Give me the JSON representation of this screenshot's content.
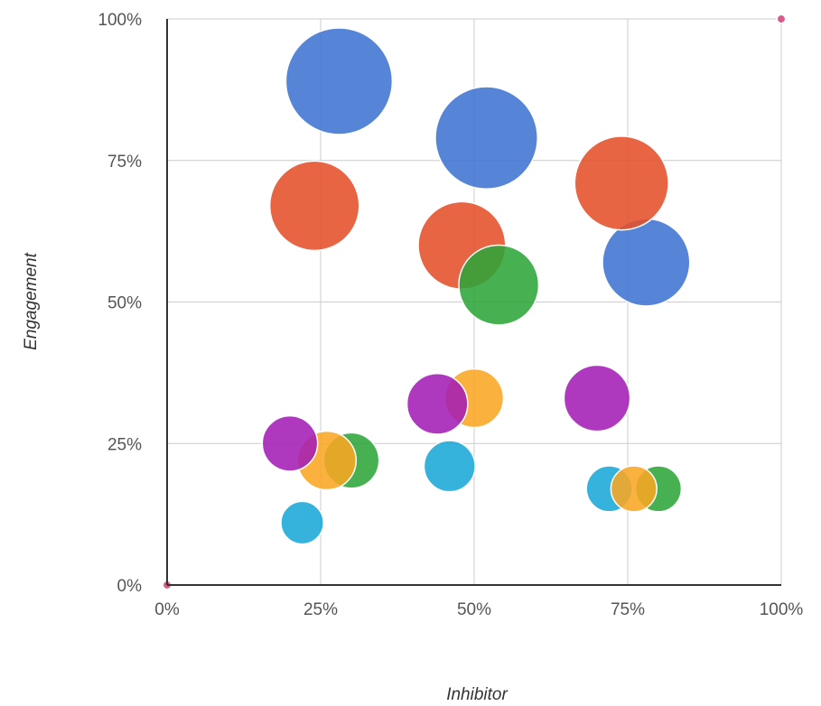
{
  "chart_data": {
    "type": "scatter",
    "subtype": "bubble",
    "title": "",
    "xlabel": "Inhibitor",
    "ylabel": "Engagement",
    "xlim": [
      0,
      1
    ],
    "ylim": [
      0,
      1
    ],
    "x_ticks": [
      "0%",
      "25%",
      "50%",
      "75%",
      "100%"
    ],
    "y_ticks": [
      "0%",
      "25%",
      "50%",
      "75%",
      "100%"
    ],
    "grid": true,
    "legend": "none",
    "points": [
      {
        "x": 0.28,
        "y": 0.89,
        "size": 1.0,
        "color": "#3F73D1"
      },
      {
        "x": 0.52,
        "y": 0.79,
        "size": 0.96,
        "color": "#3F73D1"
      },
      {
        "x": 0.78,
        "y": 0.57,
        "size": 0.82,
        "color": "#3F73D1"
      },
      {
        "x": 0.74,
        "y": 0.71,
        "size": 0.88,
        "color": "#E5502A"
      },
      {
        "x": 0.24,
        "y": 0.67,
        "size": 0.84,
        "color": "#E5502A"
      },
      {
        "x": 0.48,
        "y": 0.6,
        "size": 0.82,
        "color": "#E5502A"
      },
      {
        "x": 0.54,
        "y": 0.53,
        "size": 0.75,
        "color": "#2EA539"
      },
      {
        "x": 0.3,
        "y": 0.22,
        "size": 0.52,
        "color": "#2EA539"
      },
      {
        "x": 0.8,
        "y": 0.17,
        "size": 0.43,
        "color": "#2EA539"
      },
      {
        "x": 0.5,
        "y": 0.33,
        "size": 0.55,
        "color": "#FBA623"
      },
      {
        "x": 0.26,
        "y": 0.22,
        "size": 0.55,
        "color": "#FBA623"
      },
      {
        "x": 0.44,
        "y": 0.32,
        "size": 0.57,
        "color": "#A41EB5"
      },
      {
        "x": 0.7,
        "y": 0.33,
        "size": 0.62,
        "color": "#A41EB5"
      },
      {
        "x": 0.2,
        "y": 0.25,
        "size": 0.52,
        "color": "#A41EB5"
      },
      {
        "x": 0.46,
        "y": 0.21,
        "size": 0.48,
        "color": "#19A9D8"
      },
      {
        "x": 0.72,
        "y": 0.17,
        "size": 0.43,
        "color": "#19A9D8"
      },
      {
        "x": 0.22,
        "y": 0.11,
        "size": 0.4,
        "color": "#19A9D8"
      },
      {
        "x": 0.76,
        "y": 0.17,
        "size": 0.43,
        "color": "#FBA623"
      },
      {
        "x": 0.0,
        "y": 0.0,
        "size": 0.08,
        "color": "#D6457B"
      },
      {
        "x": 1.0,
        "y": 1.0,
        "size": 0.08,
        "color": "#D6457B"
      }
    ]
  }
}
